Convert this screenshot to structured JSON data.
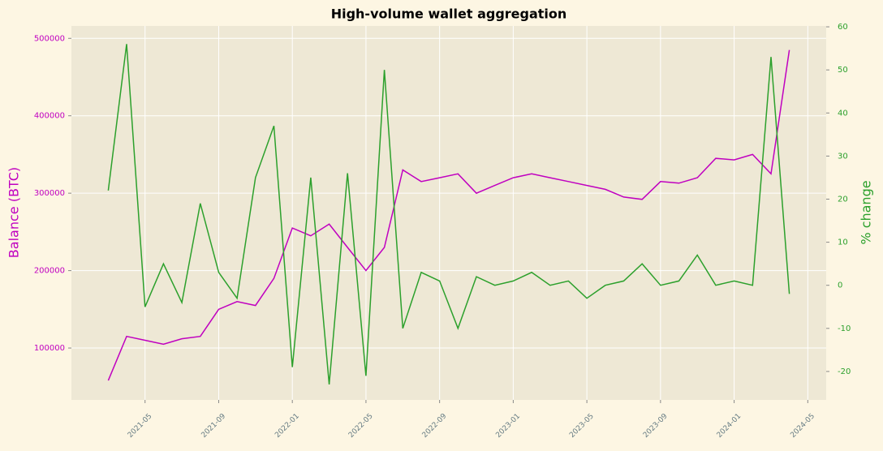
{
  "chart_data": {
    "type": "line",
    "title": "High-volume wallet aggregation",
    "ylabel": "Balance (BTC)",
    "y2label": "% change",
    "x": [
      "2021-03",
      "2021-04",
      "2021-05",
      "2021-06",
      "2021-07",
      "2021-08",
      "2021-09",
      "2021-10",
      "2021-11",
      "2021-12",
      "2022-01",
      "2022-02",
      "2022-03",
      "2022-04",
      "2022-05",
      "2022-06",
      "2022-07",
      "2022-08",
      "2022-09",
      "2022-10",
      "2022-11",
      "2022-12",
      "2023-01",
      "2023-02",
      "2023-03",
      "2023-04",
      "2023-05",
      "2023-06",
      "2023-07",
      "2023-08",
      "2023-09",
      "2023-10",
      "2023-11",
      "2023-12",
      "2024-01",
      "2024-02",
      "2024-03",
      "2024-04"
    ],
    "series": [
      {
        "name": "Balance (BTC)",
        "color": "#c000c0",
        "values": [
          58000,
          115000,
          110000,
          105000,
          112000,
          115000,
          150000,
          160000,
          155000,
          190000,
          255000,
          245000,
          260000,
          230000,
          200000,
          230000,
          330000,
          315000,
          320000,
          325000,
          300000,
          310000,
          320000,
          325000,
          320000,
          315000,
          310000,
          305000,
          295000,
          292000,
          315000,
          313000,
          320000,
          345000,
          343000,
          350000,
          325000,
          485000
        ]
      },
      {
        "name": "% change",
        "color": "#2ca02c",
        "axis": "y2",
        "values": [
          22,
          56,
          -5,
          5,
          -4,
          19,
          3,
          -3,
          25,
          37,
          -19,
          25,
          -23,
          26,
          -21,
          50,
          -10,
          3,
          1,
          -10,
          2,
          0,
          1,
          3,
          0,
          1,
          -3,
          0,
          1,
          5,
          0,
          1,
          7,
          0,
          1,
          0,
          53,
          -2
        ]
      }
    ],
    "xlim": [
      "2021-01",
      "2024-06"
    ],
    "xticks": [
      "2021-05",
      "2021-09",
      "2022-01",
      "2022-05",
      "2022-09",
      "2023-01",
      "2023-05",
      "2023-09",
      "2024-01",
      "2024-05"
    ],
    "ylim": [
      33000,
      516000
    ],
    "yticks": [
      100000,
      200000,
      300000,
      400000,
      500000
    ],
    "y2lim": [
      -26.6,
      60.2
    ],
    "y2ticks": [
      -20,
      -10,
      0,
      10,
      20,
      30,
      40,
      50,
      60
    ],
    "grid": true
  }
}
